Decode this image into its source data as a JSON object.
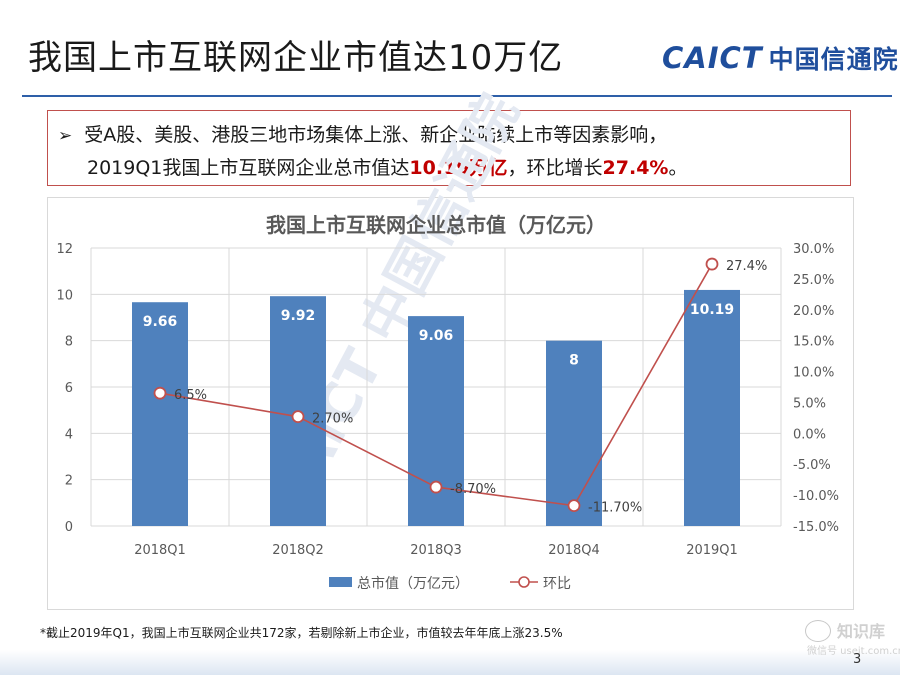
{
  "slide": {
    "title": "我国上市互联网企业市值达10万亿",
    "logo_en": "CAICT",
    "logo_cn": "中国信通院",
    "page_number": "3"
  },
  "callout": {
    "bullet": "➢",
    "line1": "受A股、美股、港股三地市场集体上涨、新企业陆续上市等因素影响，",
    "line2_a": "2019Q1我国上市互联网企业总市值达",
    "line2_b": "10.19万亿",
    "line2_c": "，环比增长",
    "line2_d": "27.4%",
    "line2_e": "。"
  },
  "footnote": "*截止2019年Q1，我国上市互联网企业共172家，若剔除新上市企业，市值较去年年底上涨23.5%",
  "watermark": {
    "diagonal": "CAICT 中国信通院",
    "badge": "知识库",
    "badge_sub": "微信号 useit.com.cn"
  },
  "colors": {
    "bar": "#4f81bd",
    "line": "#c0504d",
    "title_rule": "#2e5fa8",
    "highlight": "#c00000"
  },
  "chart_data": {
    "type": "bar+line",
    "title": "我国上市互联网企业总市值（万亿元）",
    "categories": [
      "2018Q1",
      "2018Q2",
      "2018Q3",
      "2018Q4",
      "2019Q1"
    ],
    "series": [
      {
        "name": "总市值（万亿元）",
        "type": "bar",
        "axis": "left",
        "values": [
          9.66,
          9.92,
          9.06,
          8,
          10.19
        ],
        "labels": [
          "9.66",
          "9.92",
          "9.06",
          "8",
          "10.19"
        ]
      },
      {
        "name": "环比",
        "type": "line",
        "axis": "right",
        "values": [
          6.5,
          2.7,
          -8.7,
          -11.7,
          27.4
        ],
        "labels": [
          "6.5%",
          "2.70%",
          "-8.70%",
          "-11.70%",
          "27.4%"
        ]
      }
    ],
    "y_left": {
      "min": 0,
      "max": 12,
      "step": 2,
      "ticks": [
        "0",
        "2",
        "4",
        "6",
        "8",
        "10",
        "12"
      ]
    },
    "y_right": {
      "min": -15,
      "max": 30,
      "step": 5,
      "ticks": [
        "-15.0%",
        "-10.0%",
        "-5.0%",
        "0.0%",
        "5.0%",
        "10.0%",
        "15.0%",
        "20.0%",
        "25.0%",
        "30.0%"
      ]
    },
    "gridlines": true,
    "legend_position": "bottom"
  }
}
